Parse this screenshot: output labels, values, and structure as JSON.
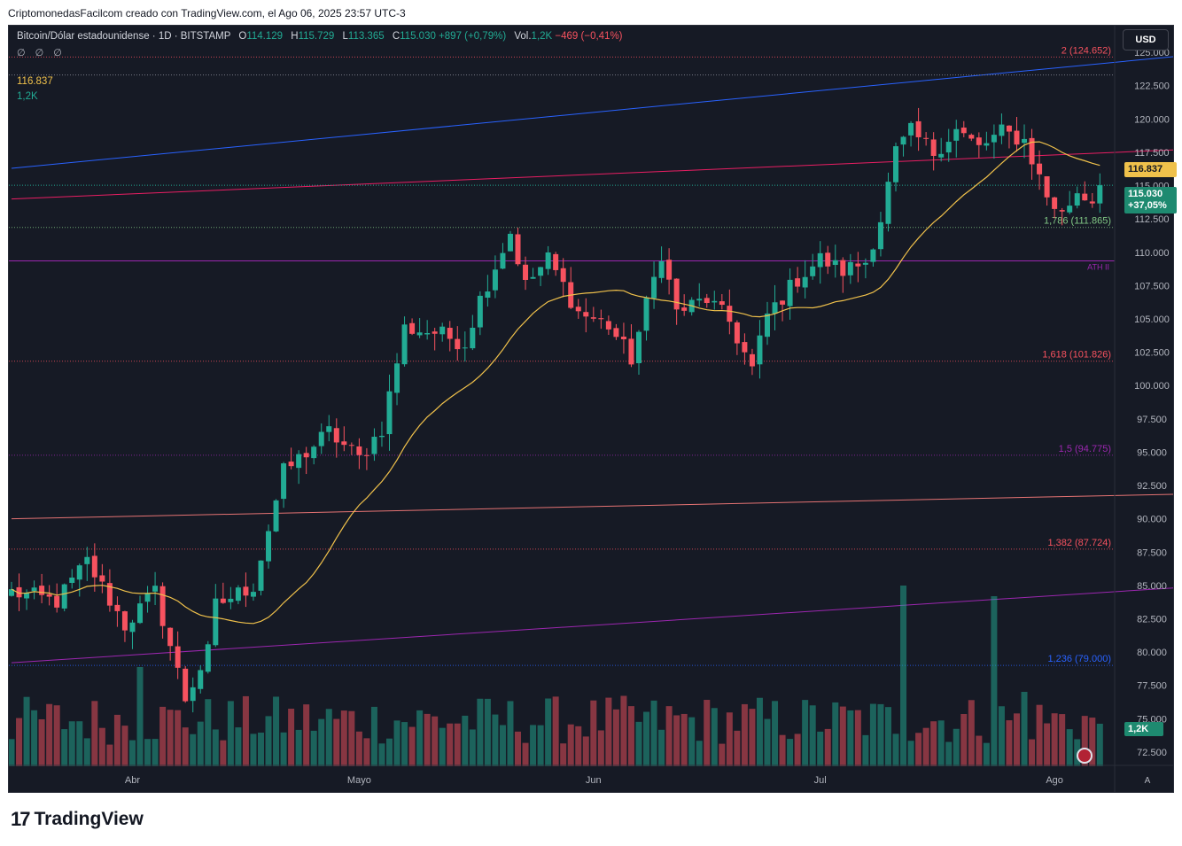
{
  "header": {
    "caption": "CriptomonedasFacilcom creado con TradingView.com, el Ago 06, 2025 23:57 UTC-3"
  },
  "legend": {
    "symbol": "Bitcoin/Dólar estadounidense · 1D · BITSTAMP",
    "open_label": "O",
    "open": "114.129",
    "high_label": "H",
    "high": "115.729",
    "low_label": "L",
    "low": "113.365",
    "close_label": "C",
    "close": "115.030",
    "change": "+897 (+0,79%)",
    "vol_label": "Vol.",
    "vol": "1,2K",
    "vol_change": "−469 (−0,41%)",
    "indicators": "∅ ∅ ∅",
    "ma_value": "116.837",
    "vol_value": "1,2K"
  },
  "currency_button": "USD",
  "price_tags": {
    "ma": "116.837",
    "price": "115.030",
    "price_change": "+37,05%",
    "volume": "1,2K"
  },
  "auto_button": "A",
  "logo": {
    "mark": "17",
    "word": "TradingView"
  },
  "colors": {
    "background": "#161a25",
    "up": "#22ab94",
    "down": "#f7525f",
    "ma": "#f0c14b",
    "trend_blue": "#2962ff",
    "trend_red": "#e91e63",
    "trend_purple": "#9c27b0",
    "trend_brown": "#e57373"
  },
  "chart_data": {
    "type": "candlestick",
    "symbol": "BTC/USD",
    "timeframe": "1D",
    "y_axis_ticks": [
      125000,
      122500,
      120000,
      117500,
      115000,
      112500,
      110000,
      107500,
      105000,
      102500,
      100000,
      97500,
      95000,
      92500,
      90000,
      87500,
      85000,
      82500,
      80000,
      77500,
      75000,
      72500
    ],
    "y_axis_tick_labels": [
      "125.000",
      "122.500",
      "120.000",
      "117.500",
      "115.000",
      "112.500",
      "110.000",
      "107.500",
      "105.000",
      "102.500",
      "100.000",
      "97.500",
      "95.000",
      "92.500",
      "90.000",
      "87.500",
      "85.000",
      "82.500",
      "80.000",
      "77.500",
      "75.000",
      "72.500"
    ],
    "ylim": [
      71500,
      127000
    ],
    "x_axis_labels": [
      {
        "label": "Abr",
        "bar": 16
      },
      {
        "label": "Mayo",
        "bar": 46
      },
      {
        "label": "Jun",
        "bar": 77
      },
      {
        "label": "Jul",
        "bar": 107
      },
      {
        "label": "Ago",
        "bar": 138
      }
    ],
    "bar_count": 145,
    "ma_period_hint": "20",
    "fib_levels": [
      {
        "label": "2 (124.652)",
        "value": 124652,
        "color": "#f7525f"
      },
      {
        "label": "1,786 (111.865)",
        "value": 111865,
        "color": "#81c784"
      },
      {
        "label": "1,618 (101.826)",
        "value": 101826,
        "color": "#f7525f"
      },
      {
        "label": "1,5 (94.775)",
        "value": 94775,
        "color": "#9c27b0"
      },
      {
        "label": "1,382 (87.724)",
        "value": 87724,
        "color": "#f7525f"
      },
      {
        "label": "1,236 (79.000)",
        "value": 79000,
        "color": "#2962ff"
      }
    ],
    "horizontal_levels": [
      {
        "value": 123300,
        "color": "#787b86"
      },
      {
        "value": 109350,
        "color": "#9c27b0",
        "label": "ATH II"
      }
    ],
    "trendlines": [
      {
        "from": {
          "bar": 0,
          "price": 116300
        },
        "to": {
          "bar": 167,
          "price": 125400
        },
        "color": "#2962ff"
      },
      {
        "from": {
          "bar": 0,
          "price": 114000
        },
        "to": {
          "bar": 167,
          "price": 118000
        },
        "color": "#e91e63"
      },
      {
        "from": {
          "bar": 0,
          "price": 90000
        },
        "to": {
          "bar": 167,
          "price": 92000
        },
        "color": "#e57373"
      },
      {
        "from": {
          "bar": 0,
          "price": 79200
        },
        "to": {
          "bar": 167,
          "price": 85300
        },
        "color": "#9c27b0"
      }
    ],
    "anchors": [
      {
        "bar": 0,
        "close": 84500
      },
      {
        "bar": 6,
        "close": 83800
      },
      {
        "bar": 10,
        "close": 86800
      },
      {
        "bar": 15,
        "close": 82000
      },
      {
        "bar": 19,
        "close": 84500
      },
      {
        "bar": 23,
        "close": 76500
      },
      {
        "bar": 26,
        "close": 80000
      },
      {
        "bar": 27,
        "close": 83500
      },
      {
        "bar": 32,
        "close": 85000
      },
      {
        "bar": 36,
        "close": 93500
      },
      {
        "bar": 42,
        "close": 96500
      },
      {
        "bar": 46,
        "close": 94500
      },
      {
        "bar": 49,
        "close": 96800
      },
      {
        "bar": 52,
        "close": 104300
      },
      {
        "bar": 56,
        "close": 104000
      },
      {
        "bar": 60,
        "close": 103200
      },
      {
        "bar": 62,
        "close": 106500
      },
      {
        "bar": 66,
        "close": 111500
      },
      {
        "bar": 68,
        "close": 107500
      },
      {
        "bar": 71,
        "close": 109500
      },
      {
        "bar": 75,
        "close": 105500
      },
      {
        "bar": 79,
        "close": 104500
      },
      {
        "bar": 82,
        "close": 102000
      },
      {
        "bar": 84,
        "close": 106000
      },
      {
        "bar": 86,
        "close": 110000
      },
      {
        "bar": 88,
        "close": 105500
      },
      {
        "bar": 92,
        "close": 106500
      },
      {
        "bar": 95,
        "close": 104800
      },
      {
        "bar": 98,
        "close": 101200
      },
      {
        "bar": 100,
        "close": 105300
      },
      {
        "bar": 104,
        "close": 108000
      },
      {
        "bar": 107,
        "close": 109500
      },
      {
        "bar": 110,
        "close": 108600
      },
      {
        "bar": 113,
        "close": 109300
      },
      {
        "bar": 115,
        "close": 112500
      },
      {
        "bar": 117,
        "close": 117500
      },
      {
        "bar": 119,
        "close": 119000
      },
      {
        "bar": 122,
        "close": 117500
      },
      {
        "bar": 125,
        "close": 119200
      },
      {
        "bar": 128,
        "close": 117800
      },
      {
        "bar": 131,
        "close": 119000
      },
      {
        "bar": 134,
        "close": 118400
      },
      {
        "bar": 137,
        "close": 114200
      },
      {
        "bar": 139,
        "close": 112800
      },
      {
        "bar": 141,
        "close": 114600
      },
      {
        "bar": 143,
        "close": 113900
      },
      {
        "bar": 144,
        "close": 115030
      }
    ],
    "volume_spikes": [
      {
        "bar": 118,
        "value": 5.1
      },
      {
        "bar": 130,
        "value": 4.8
      },
      {
        "bar": 17,
        "value": 2.8
      },
      {
        "bar": 134,
        "value": 2.1
      }
    ],
    "volume_last": 1.2,
    "grid": false,
    "legend": "top-left"
  }
}
